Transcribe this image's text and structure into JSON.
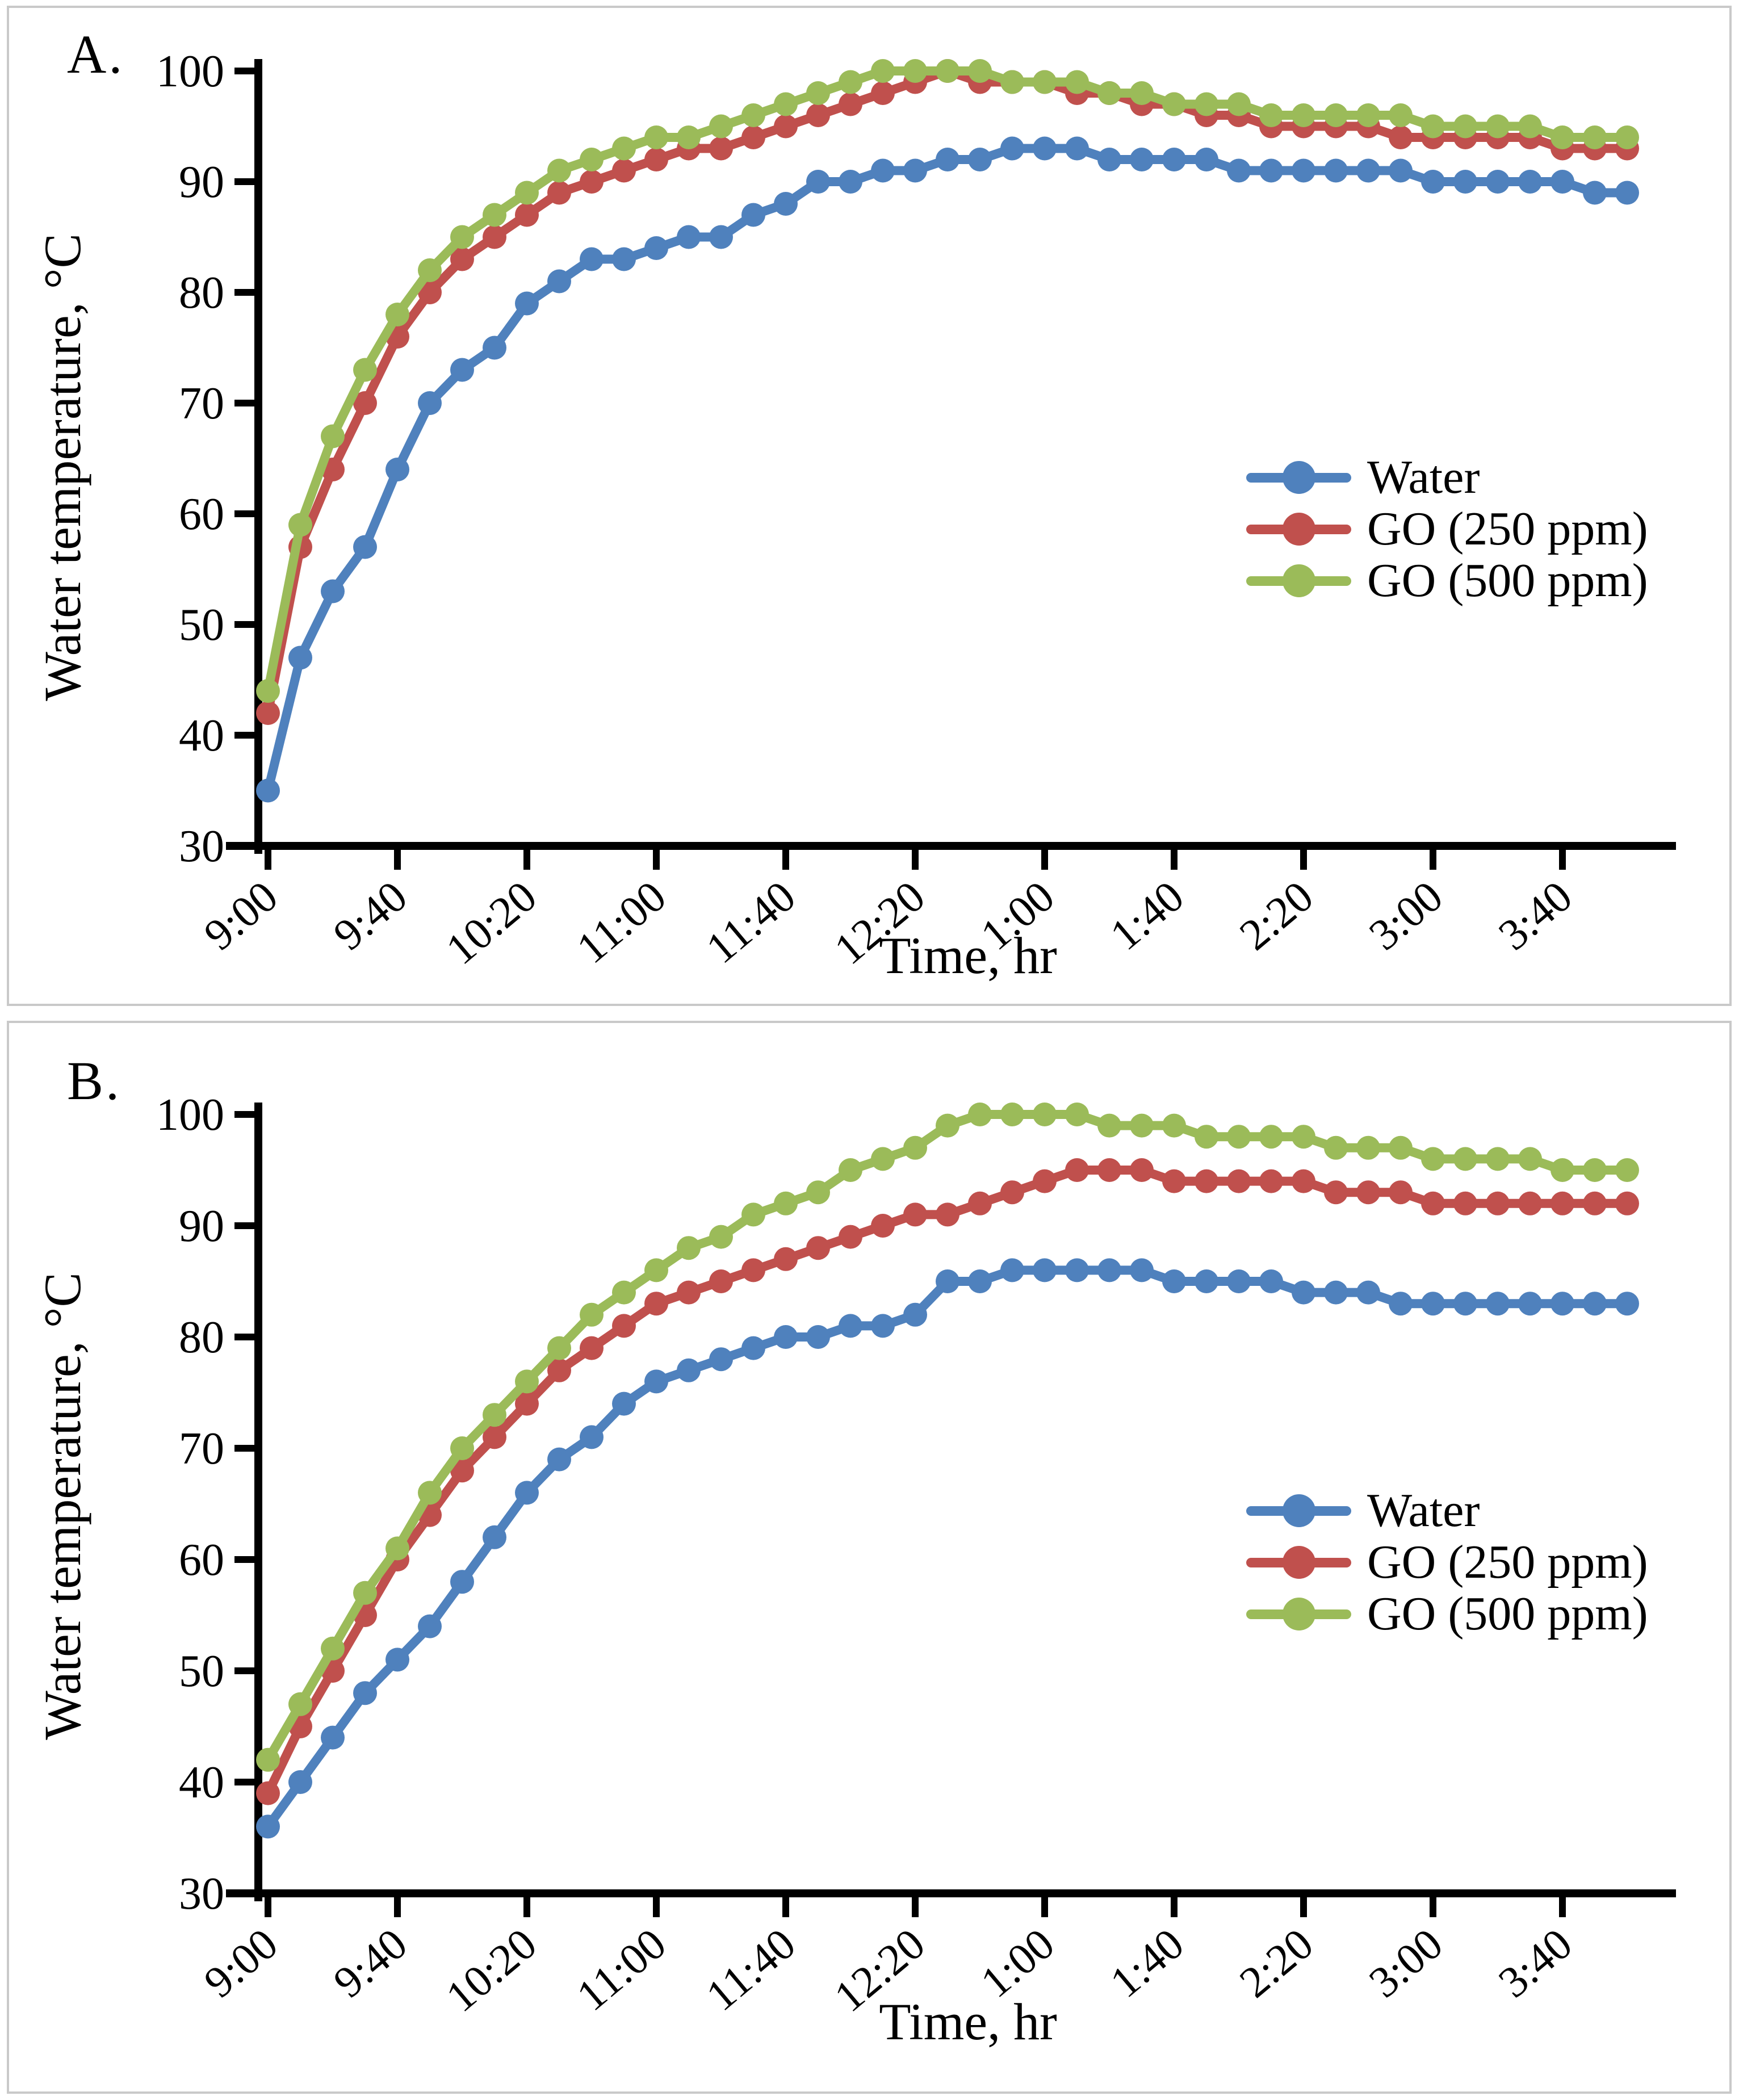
{
  "figure": {
    "panel_a_label": "A.",
    "panel_b_label": "B.",
    "border_color": "#c9c9c9",
    "axis_color": "#000000",
    "colors": {
      "water": "#4F81BD",
      "go250": "#C0504D",
      "go500": "#9BBB59"
    }
  },
  "chart_data": [
    {
      "type": "line",
      "panel": "A",
      "title": "",
      "xlabel": "Time, hr",
      "ylabel": "Water temperature, °C",
      "ylim": [
        30,
        100
      ],
      "y_ticks": [
        30,
        40,
        50,
        60,
        70,
        80,
        90,
        100
      ],
      "x_tick_labels": [
        "9:00",
        "9:40",
        "10:20",
        "11:00",
        "11:40",
        "12:20",
        "1:00",
        "1:40",
        "2:20",
        "3:00",
        "3:40"
      ],
      "legend_position": "right-middle",
      "grid": false,
      "x": [
        "9:00",
        "9:10",
        "9:20",
        "9:30",
        "9:40",
        "9:50",
        "10:00",
        "10:10",
        "10:20",
        "10:30",
        "10:40",
        "10:50",
        "11:00",
        "11:10",
        "11:20",
        "11:30",
        "11:40",
        "11:50",
        "12:00",
        "12:10",
        "12:20",
        "12:30",
        "12:40",
        "12:50",
        "1:00",
        "1:10",
        "1:20",
        "1:30",
        "1:40",
        "1:50",
        "2:00",
        "2:10",
        "2:20",
        "2:30",
        "2:40",
        "2:50",
        "3:00",
        "3:10",
        "3:20",
        "3:30",
        "3:40",
        "3:50",
        "4:00"
      ],
      "series": [
        {
          "name": "Water",
          "color_key": "water",
          "values": [
            35,
            47,
            53,
            57,
            64,
            70,
            73,
            75,
            79,
            81,
            83,
            83,
            84,
            85,
            85,
            87,
            88,
            90,
            90,
            91,
            91,
            92,
            92,
            93,
            93,
            93,
            92,
            92,
            92,
            92,
            91,
            91,
            91,
            91,
            91,
            91,
            90,
            90,
            90,
            90,
            90,
            89,
            89
          ]
        },
        {
          "name": "GO (250 ppm)",
          "color_key": "go250",
          "values": [
            42,
            57,
            64,
            70,
            76,
            80,
            83,
            85,
            87,
            89,
            90,
            91,
            92,
            93,
            93,
            94,
            95,
            96,
            97,
            98,
            99,
            100,
            99,
            99,
            99,
            98,
            98,
            97,
            97,
            96,
            96,
            95,
            95,
            95,
            95,
            94,
            94,
            94,
            94,
            94,
            93,
            93,
            93
          ]
        },
        {
          "name": "GO (500 ppm)",
          "color_key": "go500",
          "values": [
            44,
            59,
            67,
            73,
            78,
            82,
            85,
            87,
            89,
            91,
            92,
            93,
            94,
            94,
            95,
            96,
            97,
            98,
            99,
            100,
            100,
            100,
            100,
            99,
            99,
            99,
            98,
            98,
            97,
            97,
            97,
            96,
            96,
            96,
            96,
            96,
            95,
            95,
            95,
            95,
            94,
            94,
            94
          ]
        }
      ]
    },
    {
      "type": "line",
      "panel": "B",
      "title": "",
      "xlabel": "Time, hr",
      "ylabel": "Water temperature, °C",
      "ylim": [
        30,
        100
      ],
      "y_ticks": [
        30,
        40,
        50,
        60,
        70,
        80,
        90,
        100
      ],
      "x_tick_labels": [
        "9:00",
        "9:40",
        "10:20",
        "11:00",
        "11:40",
        "12:20",
        "1:00",
        "1:40",
        "2:20",
        "3:00",
        "3:40"
      ],
      "legend_position": "right-middle",
      "grid": false,
      "x": [
        "9:00",
        "9:10",
        "9:20",
        "9:30",
        "9:40",
        "9:50",
        "10:00",
        "10:10",
        "10:20",
        "10:30",
        "10:40",
        "10:50",
        "11:00",
        "11:10",
        "11:20",
        "11:30",
        "11:40",
        "11:50",
        "12:00",
        "12:10",
        "12:20",
        "12:30",
        "12:40",
        "12:50",
        "1:00",
        "1:10",
        "1:20",
        "1:30",
        "1:40",
        "1:50",
        "2:00",
        "2:10",
        "2:20",
        "2:30",
        "2:40",
        "2:50",
        "3:00",
        "3:10",
        "3:20",
        "3:30",
        "3:40",
        "3:50",
        "4:00"
      ],
      "series": [
        {
          "name": "Water",
          "color_key": "water",
          "values": [
            36,
            40,
            44,
            48,
            51,
            54,
            58,
            62,
            66,
            69,
            71,
            74,
            76,
            77,
            78,
            79,
            80,
            80,
            81,
            81,
            82,
            85,
            85,
            86,
            86,
            86,
            86,
            86,
            85,
            85,
            85,
            85,
            84,
            84,
            84,
            83,
            83,
            83,
            83,
            83,
            83,
            83,
            83
          ]
        },
        {
          "name": "GO (250 ppm)",
          "color_key": "go250",
          "values": [
            39,
            45,
            50,
            55,
            60,
            64,
            68,
            71,
            74,
            77,
            79,
            81,
            83,
            84,
            85,
            86,
            87,
            88,
            89,
            90,
            91,
            91,
            92,
            93,
            94,
            95,
            95,
            95,
            94,
            94,
            94,
            94,
            94,
            93,
            93,
            93,
            92,
            92,
            92,
            92,
            92,
            92,
            92
          ]
        },
        {
          "name": "GO (500 ppm)",
          "color_key": "go500",
          "values": [
            42,
            47,
            52,
            57,
            61,
            66,
            70,
            73,
            76,
            79,
            82,
            84,
            86,
            88,
            89,
            91,
            92,
            93,
            95,
            96,
            97,
            99,
            100,
            100,
            100,
            100,
            99,
            99,
            99,
            98,
            98,
            98,
            98,
            97,
            97,
            97,
            96,
            96,
            96,
            96,
            95,
            95,
            95
          ]
        }
      ]
    }
  ]
}
